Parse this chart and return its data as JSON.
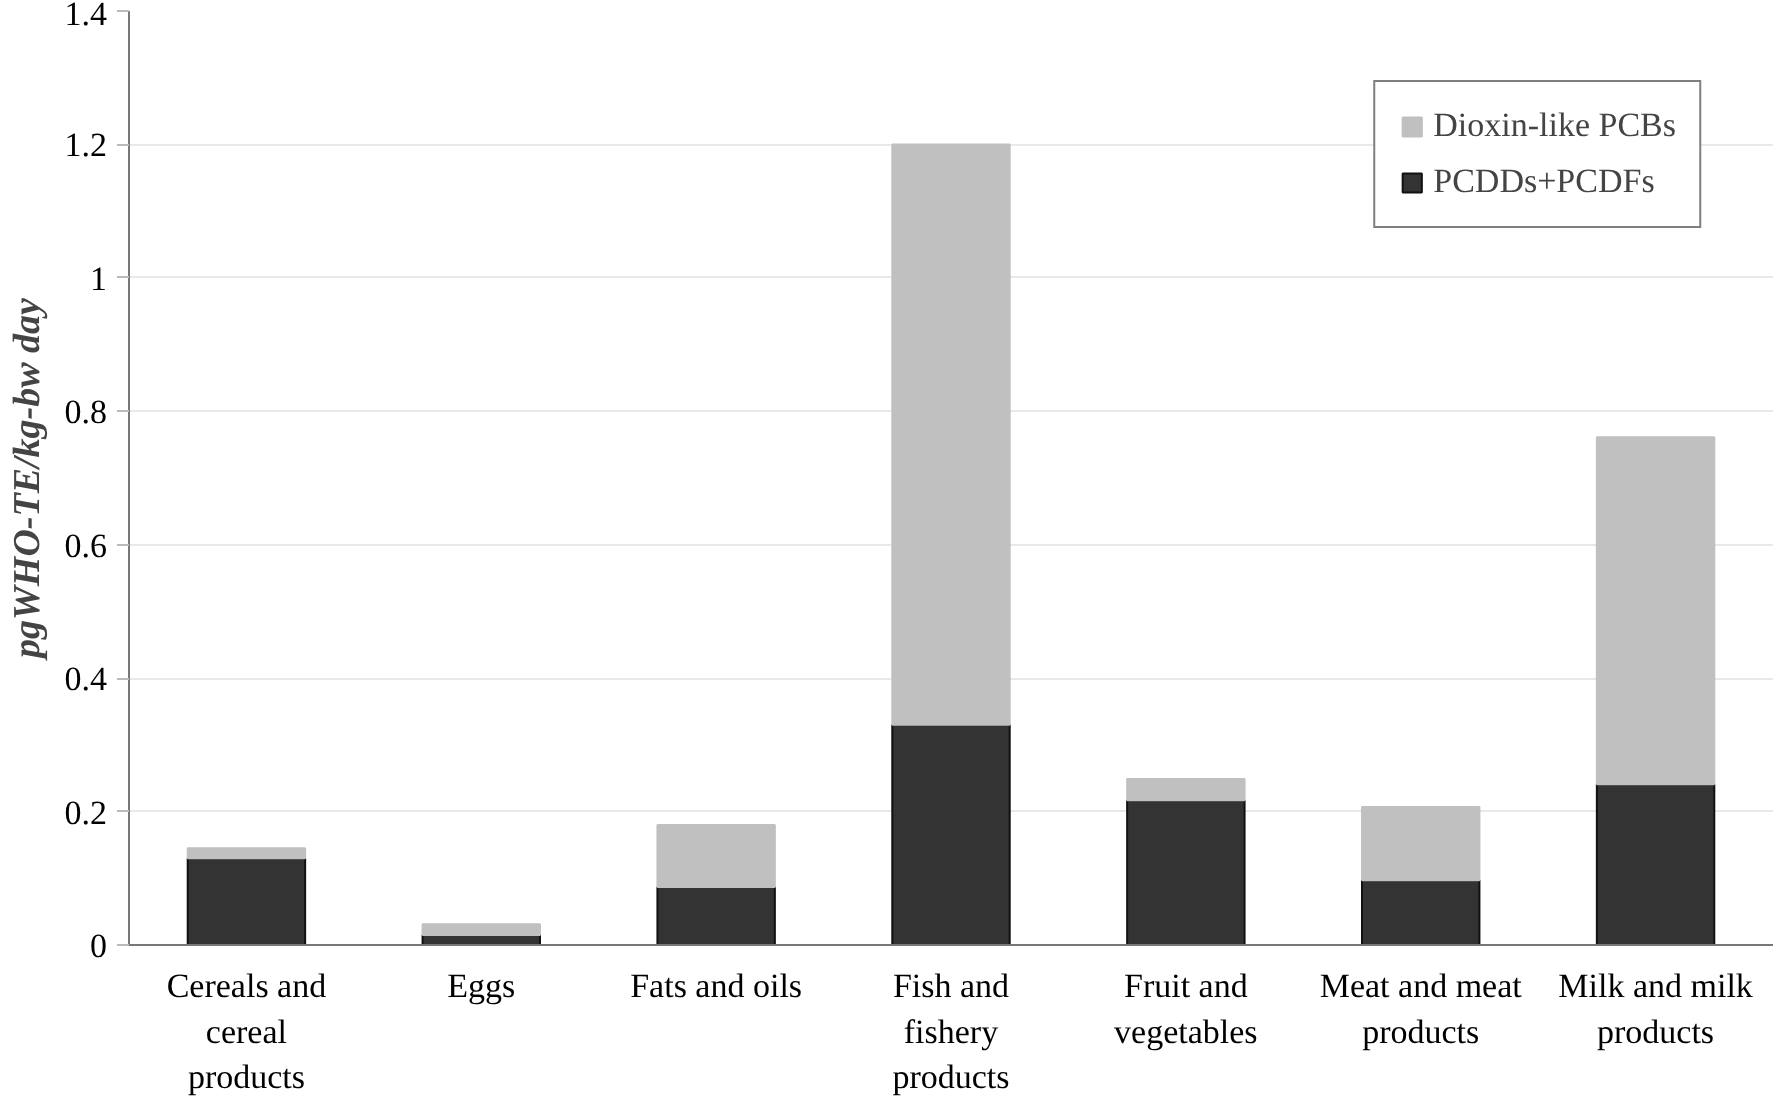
{
  "chart_data": {
    "type": "bar",
    "stacked": true,
    "ylabel": "pgWHO-TE/kg-bw day",
    "categories": [
      "Cereals and cereal products",
      "Eggs",
      "Fats and oils",
      "Fish and fishery products",
      "Fruit and vegetables",
      "Meat and meat products",
      "Milk and milk products"
    ],
    "series": [
      {
        "name": "PCDDs+PCDFs",
        "color": "#333333",
        "values": [
          0.13,
          0.015,
          0.087,
          0.33,
          0.217,
          0.097,
          0.241
        ]
      },
      {
        "name": "Dioxin-like PCBs",
        "color": "#c0c0c0",
        "values": [
          0.015,
          0.016,
          0.093,
          0.87,
          0.032,
          0.11,
          0.52
        ]
      }
    ],
    "ylim": [
      0,
      1.4
    ],
    "yticks": [
      0,
      0.2,
      0.4,
      0.6,
      0.8,
      1,
      1.2,
      1.4
    ],
    "grid": "y",
    "legend": "top right"
  }
}
